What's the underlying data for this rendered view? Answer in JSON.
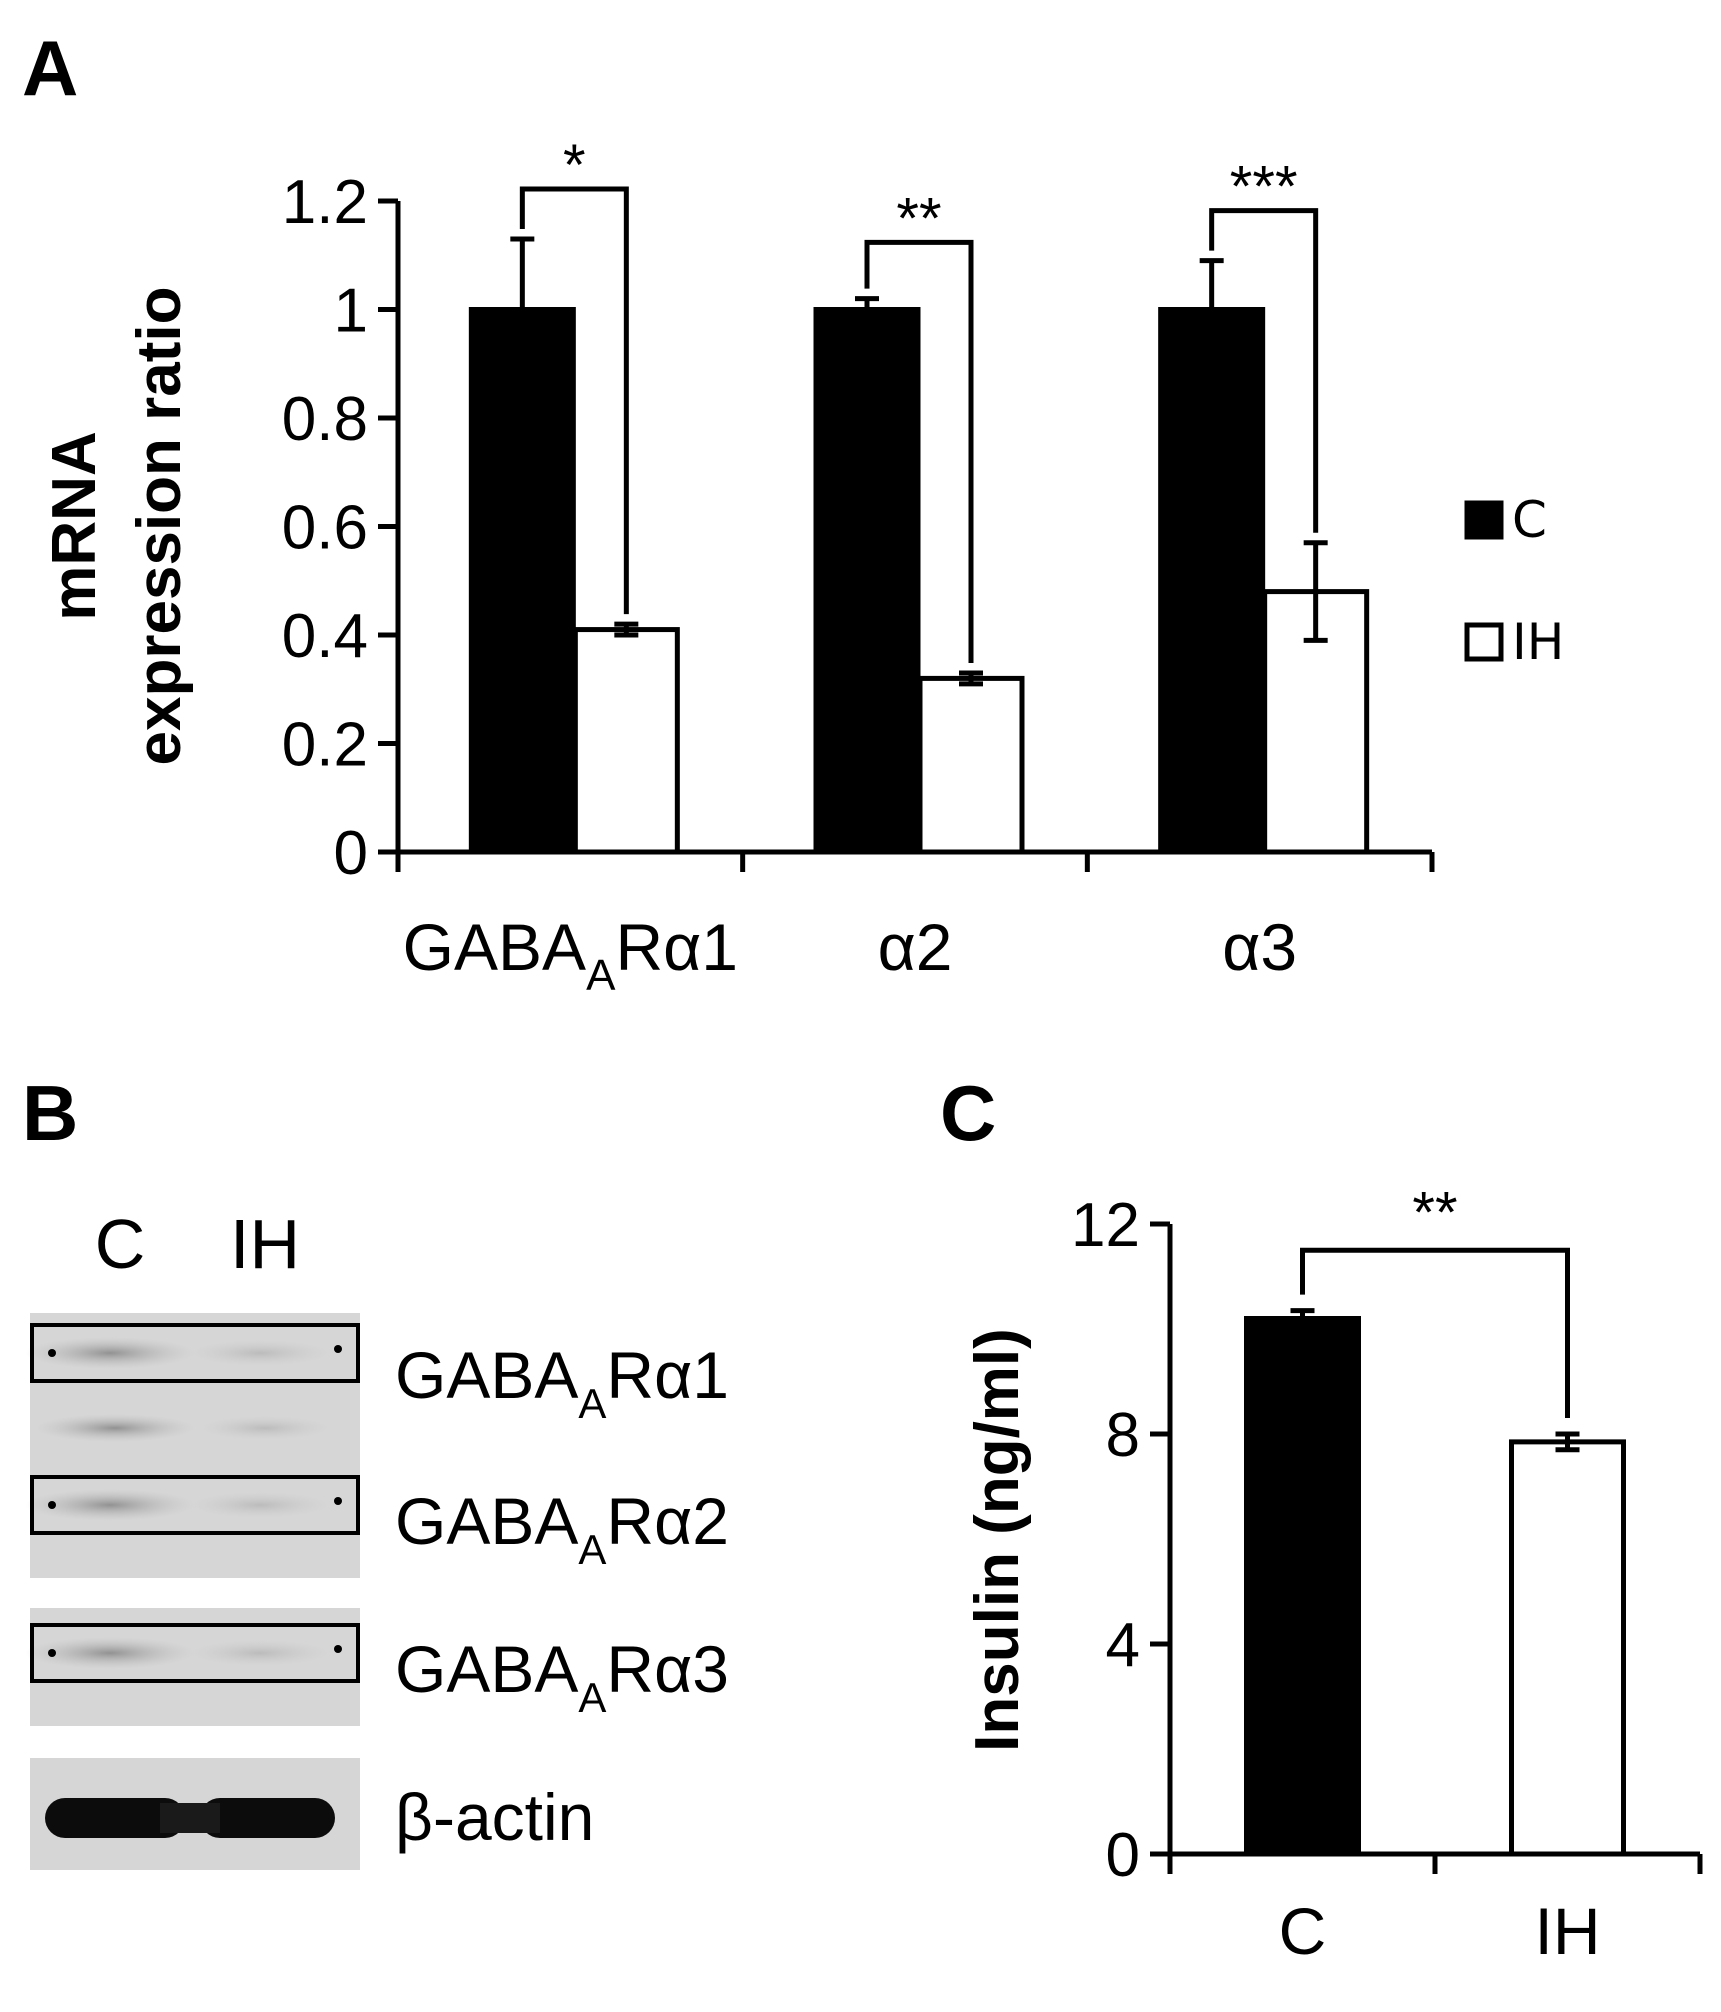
{
  "panels": {
    "A": "A",
    "B": "B",
    "C": "C"
  },
  "chart_data": [
    {
      "panel": "A",
      "type": "bar",
      "ylabel_lines": [
        "mRNA",
        "expression ratio"
      ],
      "ylim": [
        0,
        1.2
      ],
      "yticks": [
        "0",
        "0.2",
        "0.4",
        "0.6",
        "0.8",
        "1",
        "1.2"
      ],
      "categories": [
        {
          "main": "GABA",
          "sub": "A",
          "tail": "Rα1"
        },
        {
          "main": "α2",
          "sub": "",
          "tail": ""
        },
        {
          "main": "α3",
          "sub": "",
          "tail": ""
        }
      ],
      "series": [
        {
          "name": "C",
          "values": [
            1.0,
            1.0,
            1.0
          ],
          "errors": [
            0.13,
            0.02,
            0.09
          ],
          "fill": "#000000"
        },
        {
          "name": "IH",
          "values": [
            0.41,
            0.32,
            0.48
          ],
          "errors": [
            0.01,
            0.01,
            0.09
          ],
          "fill": "#ffffff"
        }
      ],
      "significance": [
        "*",
        "**",
        "***"
      ],
      "legend": {
        "placement": "right",
        "items": [
          "C",
          "IH"
        ]
      }
    },
    {
      "panel": "C",
      "type": "bar",
      "ylabel": "Insulin (ng/ml)",
      "ylim": [
        0,
        12
      ],
      "yticks": [
        "0",
        "4",
        "8",
        "12"
      ],
      "categories": [
        "C",
        "IH"
      ],
      "values": [
        10.2,
        7.85
      ],
      "errors": [
        0.15,
        0.15
      ],
      "fills": [
        "#000000",
        "#ffffff"
      ],
      "significance": "**"
    }
  ],
  "blot": {
    "lanes": [
      "C",
      "IH"
    ],
    "rows": [
      {
        "main": "GABA",
        "sub": "A",
        "tail": "Rα1"
      },
      {
        "main": "GABA",
        "sub": "A",
        "tail": "Rα2"
      },
      {
        "main": "GABA",
        "sub": "A",
        "tail": "Rα3"
      },
      {
        "main": "β-actin",
        "sub": "",
        "tail": ""
      }
    ]
  }
}
